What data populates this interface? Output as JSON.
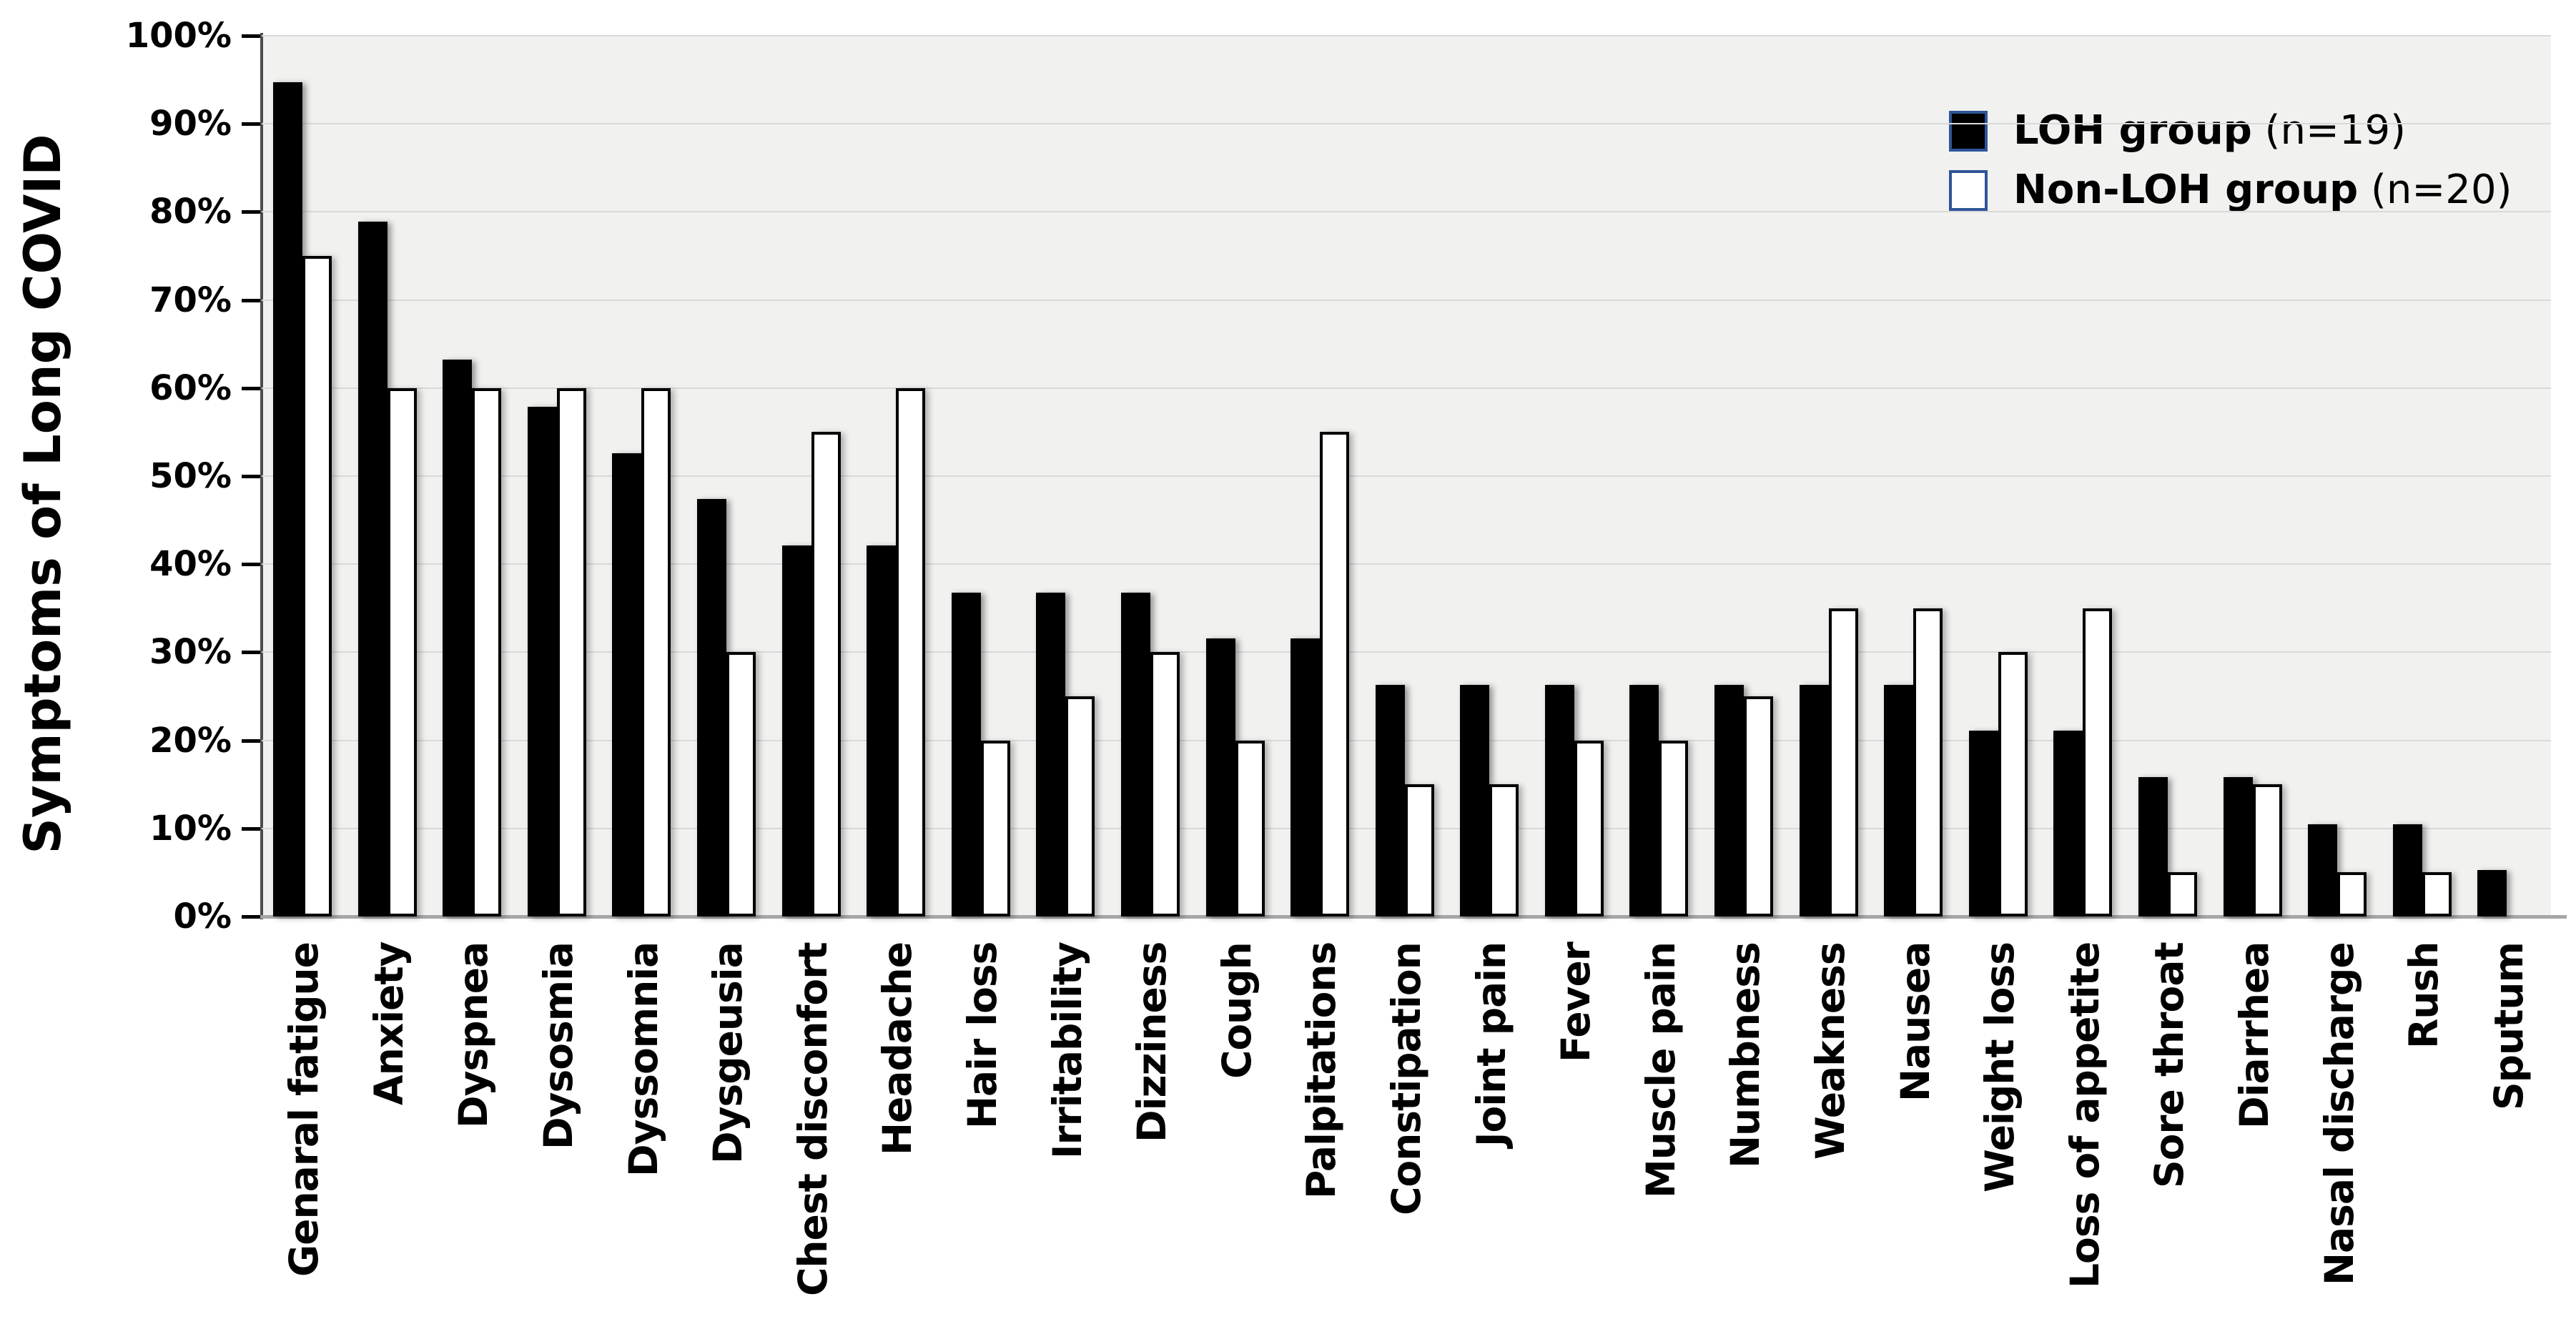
{
  "chart_data": {
    "type": "bar",
    "title": "",
    "xlabel": "",
    "ylabel": "Symptoms of Long COVID",
    "ylim": [
      0,
      100
    ],
    "grid": true,
    "legend_position": "top-right",
    "yticks": [
      "0%",
      "10%",
      "20%",
      "30%",
      "40%",
      "50%",
      "60%",
      "70%",
      "80%",
      "90%",
      "100%"
    ],
    "categories": [
      "Genaral fatigue",
      "Anxiety",
      "Dyspnea",
      "Dysosmia",
      "Dyssomnia",
      "Dysgeusia",
      "Chest disconfort",
      "Headache",
      "Hair loss",
      "Irritability",
      "Dizziness",
      "Cough",
      "Palpitations",
      "Constipation",
      "Joint pain",
      "Fever",
      "Muscle pain",
      "Numbness",
      "Weakness",
      "Nausea",
      "Weight loss",
      "Loss of appetite",
      "Sore throat",
      "Diarrhea",
      "Nasal discharge",
      "Rush",
      "Sputum"
    ],
    "series": [
      {
        "name": "LOH group",
        "n_label": "(n=19)",
        "fill": "#000000",
        "values": [
          94.7,
          78.9,
          63.2,
          57.9,
          52.6,
          47.4,
          42.1,
          42.1,
          36.8,
          36.8,
          36.8,
          31.6,
          31.6,
          26.3,
          26.3,
          26.3,
          26.3,
          26.3,
          26.3,
          26.3,
          21.1,
          21.1,
          15.8,
          15.8,
          10.5,
          10.5,
          5.3
        ]
      },
      {
        "name": "Non-LOH group",
        "n_label": "(n=20)",
        "fill": "#ffffff",
        "border": "#000000",
        "values": [
          75,
          60,
          60,
          60,
          60,
          30,
          55,
          60,
          20,
          25,
          30,
          20,
          55,
          15,
          15,
          20,
          20,
          25,
          35,
          35,
          30,
          35,
          5,
          15,
          5,
          5,
          0
        ]
      }
    ]
  },
  "colors": {
    "page_bg": "#ffffff",
    "plot_bg": "#f1f1ef",
    "gridline": "#d9d9d9",
    "y_axis_line": "#4d4d4d",
    "baseline": "#a6a6a6",
    "bar_black": "#000000",
    "bar_white_fill": "#ffffff",
    "bar_outline": "#000000",
    "legend_swatch_border": "#2f5597",
    "text": "#000000"
  }
}
